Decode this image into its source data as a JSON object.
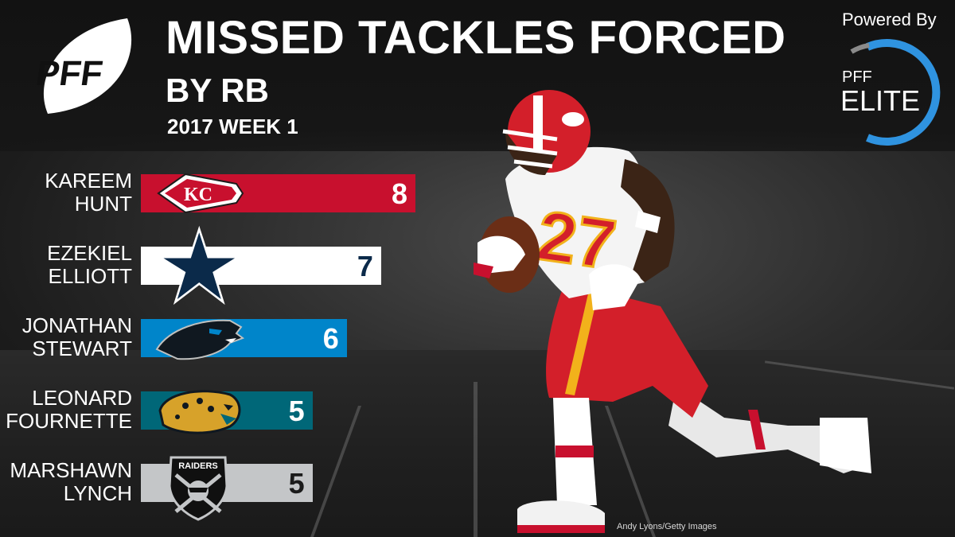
{
  "header": {
    "title": "MISSED TACKLES FORCED",
    "subtitle": "BY RB",
    "week": "2017 WEEK 1",
    "pff_logo_text": "PFF",
    "powered_by": "Powered By",
    "elite_top": "PFF",
    "elite_main": "ELITE"
  },
  "photo_credit": "Andy Lyons/Getty Images",
  "colors": {
    "chiefs": "#c8102e",
    "cowboys": "#ffffff",
    "panthers": "#0085ca",
    "jaguars": "#006778",
    "raiders": "#c4c6c8",
    "elite_ring": "#2f93e0"
  },
  "chart_data": {
    "type": "bar",
    "orientation": "horizontal",
    "title": "MISSED TACKLES FORCED",
    "subtitle": "BY RB",
    "categories": [
      "KAREEM HUNT",
      "EZEKIEL ELLIOTT",
      "JONATHAN STEWART",
      "LEONARD FOURNETTE",
      "MARSHAWN LYNCH"
    ],
    "name_lines": [
      [
        "KAREEM",
        "HUNT"
      ],
      [
        "EZEKIEL",
        "ELLIOTT"
      ],
      [
        "JONATHAN",
        "STEWART"
      ],
      [
        "LEONARD",
        "FOURNETTE"
      ],
      [
        "MARSHAWN",
        "LYNCH"
      ]
    ],
    "values": [
      8,
      7,
      6,
      5,
      5
    ],
    "teams": [
      "chiefs",
      "cowboys",
      "panthers",
      "jaguars",
      "raiders"
    ],
    "team_icons": [
      "chiefs-arrowhead-icon",
      "cowboys-star-icon",
      "panthers-panther-icon",
      "jaguars-jaguar-icon",
      "raiders-shield-icon"
    ],
    "raiders_logo_text": "RAIDERS",
    "value_text_colors": [
      "#ffffff",
      "#0b2a4a",
      "#ffffff",
      "#ffffff",
      "#1b1b1b"
    ],
    "xlim": [
      0,
      8
    ],
    "grid": false,
    "legend": "none"
  }
}
